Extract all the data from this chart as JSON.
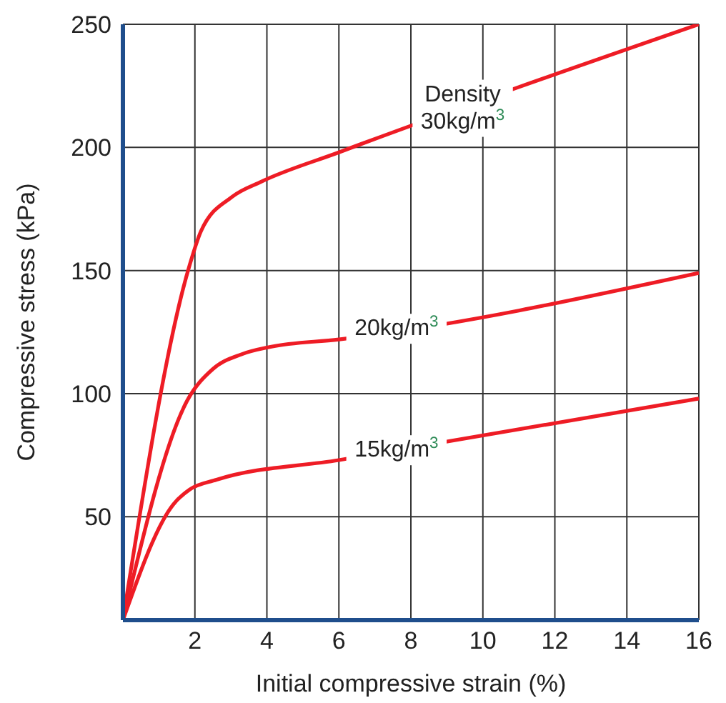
{
  "chart_data": {
    "type": "line",
    "xlabel": "Initial compressive strain (%)",
    "ylabel": "Compressive stress (kPa)",
    "xlim": [
      0,
      16
    ],
    "ylim": [
      8,
      250
    ],
    "xticks": [
      2,
      4,
      6,
      8,
      10,
      12,
      14,
      16
    ],
    "yticks": [
      50,
      100,
      150,
      200,
      250
    ],
    "grid": true,
    "line_style": "solid",
    "marker": "none",
    "series": [
      {
        "name": "Density 30kg/m$^{3}$",
        "color": "#ee1c25",
        "x": [
          0,
          1.85,
          2.17,
          3.04,
          3.83,
          6.0,
          16
        ],
        "values": [
          8,
          152,
          166,
          180,
          186,
          198,
          250
        ]
      },
      {
        "name": "20kg/m$^{3}$",
        "color": "#ee1c25",
        "x": [
          0,
          1.78,
          2.5,
          3.3,
          4.1,
          6.0,
          16
        ],
        "values": [
          8,
          97,
          110,
          116,
          119,
          122,
          149
        ]
      },
      {
        "name": "15kg/m$^{3}$",
        "color": "#ee1c25",
        "x": [
          0,
          1.4,
          1.85,
          2.6,
          6.0,
          16
        ],
        "values": [
          8,
          55,
          61,
          65,
          73,
          98
        ]
      }
    ]
  }
}
